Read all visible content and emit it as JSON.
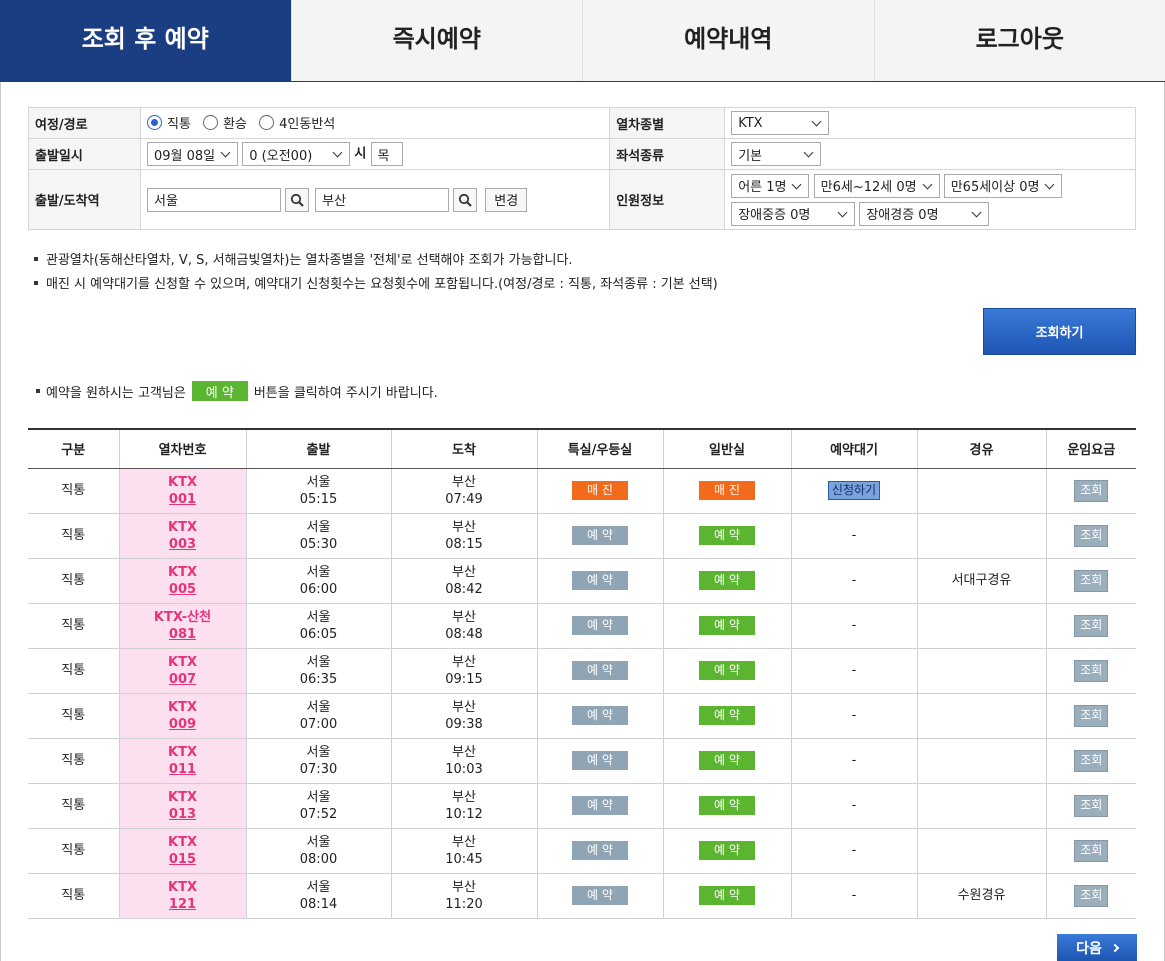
{
  "tabs": [
    "조회 후 예약",
    "즉시예약",
    "예약내역",
    "로그아웃"
  ],
  "form": {
    "route": {
      "label": "여정/경로",
      "options": [
        "직통",
        "환승",
        "4인동반석"
      ]
    },
    "train_type": {
      "label": "열차종별",
      "value": "KTX"
    },
    "departure_time": {
      "label": "출발일시",
      "date": "09월 08일",
      "hour": "0 (오전00)",
      "hour_unit": "시",
      "weekday": "목"
    },
    "seat_type": {
      "label": "좌석종류",
      "value": "기본"
    },
    "stations": {
      "label": "출발/도착역",
      "from": "서울",
      "to": "부산",
      "change": "변경"
    },
    "passengers": {
      "label": "인원정보",
      "options": [
        "어른 1명",
        "만6세~12세 0명",
        "만65세이상 0명",
        "장애중증 0명",
        "장애경증 0명"
      ]
    }
  },
  "notices": [
    "관광열차(동해산타열차, V, S, 서해금빛열차)는 열차종별을 '전체'로 선택해야 조회가 가능합니다.",
    "매진 시 예약대기를 신청할 수 있으며, 예약대기 신청횟수는 요청횟수에 포함됩니다.(여정/경로 : 직통, 좌석종류 : 기본 선택)"
  ],
  "search_button": "조회하기",
  "instruction": {
    "before": "예약을 원하시는 고객님은",
    "button": "예 약",
    "after": "버튼을 클릭하여 주시기 바랍니다."
  },
  "table": {
    "headers": [
      "구분",
      "열차번호",
      "출발",
      "도착",
      "특실/우등실",
      "일반실",
      "예약대기",
      "경유",
      "운임요금"
    ],
    "rows": [
      {
        "route": "직통",
        "train_name": "KTX",
        "train_no": "001",
        "dep_station": "서울",
        "dep_time": "05:15",
        "arr_station": "부산",
        "arr_time": "07:49",
        "special": "매 진",
        "general": "매 진",
        "waitlist": "신청하기",
        "via": null,
        "fare": "조회"
      },
      {
        "route": "직통",
        "train_name": "KTX",
        "train_no": "003",
        "dep_station": "서울",
        "dep_time": "05:30",
        "arr_station": "부산",
        "arr_time": "08:15",
        "special": "예 약",
        "general": "예 약",
        "waitlist": "-",
        "via": null,
        "fare": "조회"
      },
      {
        "route": "직통",
        "train_name": "KTX",
        "train_no": "005",
        "dep_station": "서울",
        "dep_time": "06:00",
        "arr_station": "부산",
        "arr_time": "08:42",
        "special": "예 약",
        "general": "예 약",
        "waitlist": "-",
        "via": "서대구경유",
        "fare": "조회"
      },
      {
        "route": "직통",
        "train_name": "KTX-산천",
        "train_no": "081",
        "dep_station": "서울",
        "dep_time": "06:05",
        "arr_station": "부산",
        "arr_time": "08:48",
        "special": "예 약",
        "general": "예 약",
        "waitlist": "-",
        "via": null,
        "fare": "조회"
      },
      {
        "route": "직통",
        "train_name": "KTX",
        "train_no": "007",
        "dep_station": "서울",
        "dep_time": "06:35",
        "arr_station": "부산",
        "arr_time": "09:15",
        "special": "예 약",
        "general": "예 약",
        "waitlist": "-",
        "via": null,
        "fare": "조회"
      },
      {
        "route": "직통",
        "train_name": "KTX",
        "train_no": "009",
        "dep_station": "서울",
        "dep_time": "07:00",
        "arr_station": "부산",
        "arr_time": "09:38",
        "special": "예 약",
        "general": "예 약",
        "waitlist": "-",
        "via": null,
        "fare": "조회"
      },
      {
        "route": "직통",
        "train_name": "KTX",
        "train_no": "011",
        "dep_station": "서울",
        "dep_time": "07:30",
        "arr_station": "부산",
        "arr_time": "10:03",
        "special": "예 약",
        "general": "예 약",
        "waitlist": "-",
        "via": null,
        "fare": "조회"
      },
      {
        "route": "직통",
        "train_name": "KTX",
        "train_no": "013",
        "dep_station": "서울",
        "dep_time": "07:52",
        "arr_station": "부산",
        "arr_time": "10:12",
        "special": "예 약",
        "general": "예 약",
        "waitlist": "-",
        "via": null,
        "fare": "조회"
      },
      {
        "route": "직통",
        "train_name": "KTX",
        "train_no": "015",
        "dep_station": "서울",
        "dep_time": "08:00",
        "arr_station": "부산",
        "arr_time": "10:45",
        "special": "예 약",
        "general": "예 약",
        "waitlist": "-",
        "via": null,
        "fare": "조회"
      },
      {
        "route": "직통",
        "train_name": "KTX",
        "train_no": "121",
        "dep_station": "서울",
        "dep_time": "08:14",
        "arr_station": "부산",
        "arr_time": "11:20",
        "special": "예 약",
        "general": "예 약",
        "waitlist": "-",
        "via": "수원경유",
        "fare": "조회"
      }
    ]
  },
  "next_button": "다음"
}
